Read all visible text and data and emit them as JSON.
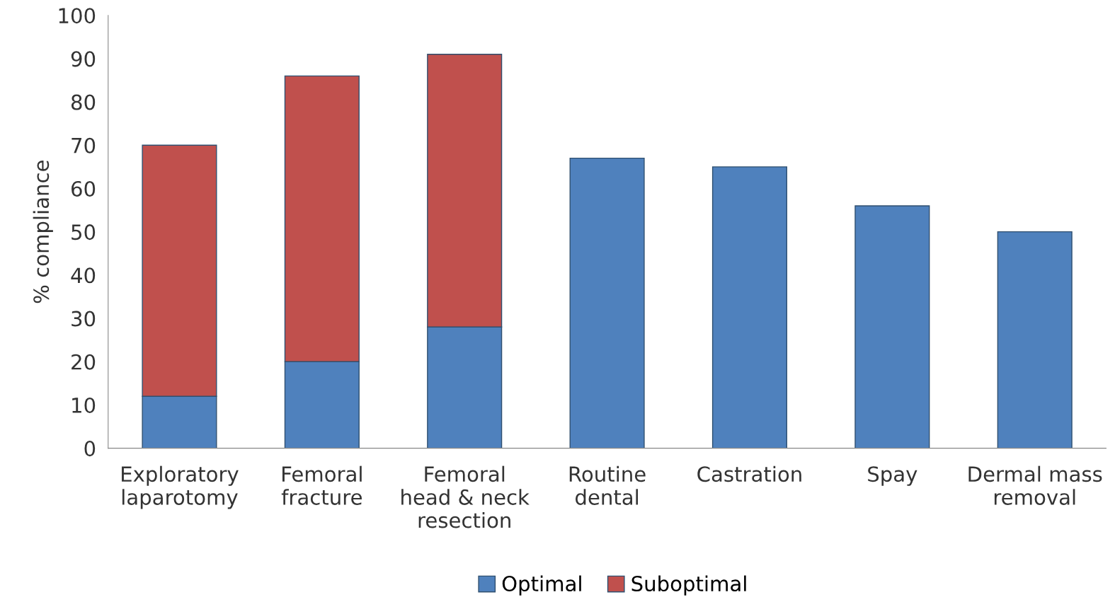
{
  "chart_data": {
    "type": "bar",
    "stacked": true,
    "ylabel": "% compliance",
    "categories": [
      "Exploratory\nlaparotomy",
      "Femoral\nfracture",
      "Femoral\nhead & neck\nresection",
      "Routine\ndental",
      "Castration",
      "Spay",
      "Dermal mass\nremoval"
    ],
    "series": [
      {
        "name": "Optimal",
        "color": "#4f81bd",
        "values": [
          12,
          20,
          28,
          67,
          65,
          56,
          50
        ]
      },
      {
        "name": "Suboptimal",
        "color": "#c0504d",
        "values": [
          58,
          66,
          63,
          null,
          null,
          null,
          null
        ]
      }
    ],
    "ylim": [
      0,
      100
    ],
    "yticks": [
      0,
      10,
      20,
      30,
      40,
      50,
      60,
      70,
      80,
      90,
      100
    ],
    "grid": false,
    "legend": "bottom"
  }
}
